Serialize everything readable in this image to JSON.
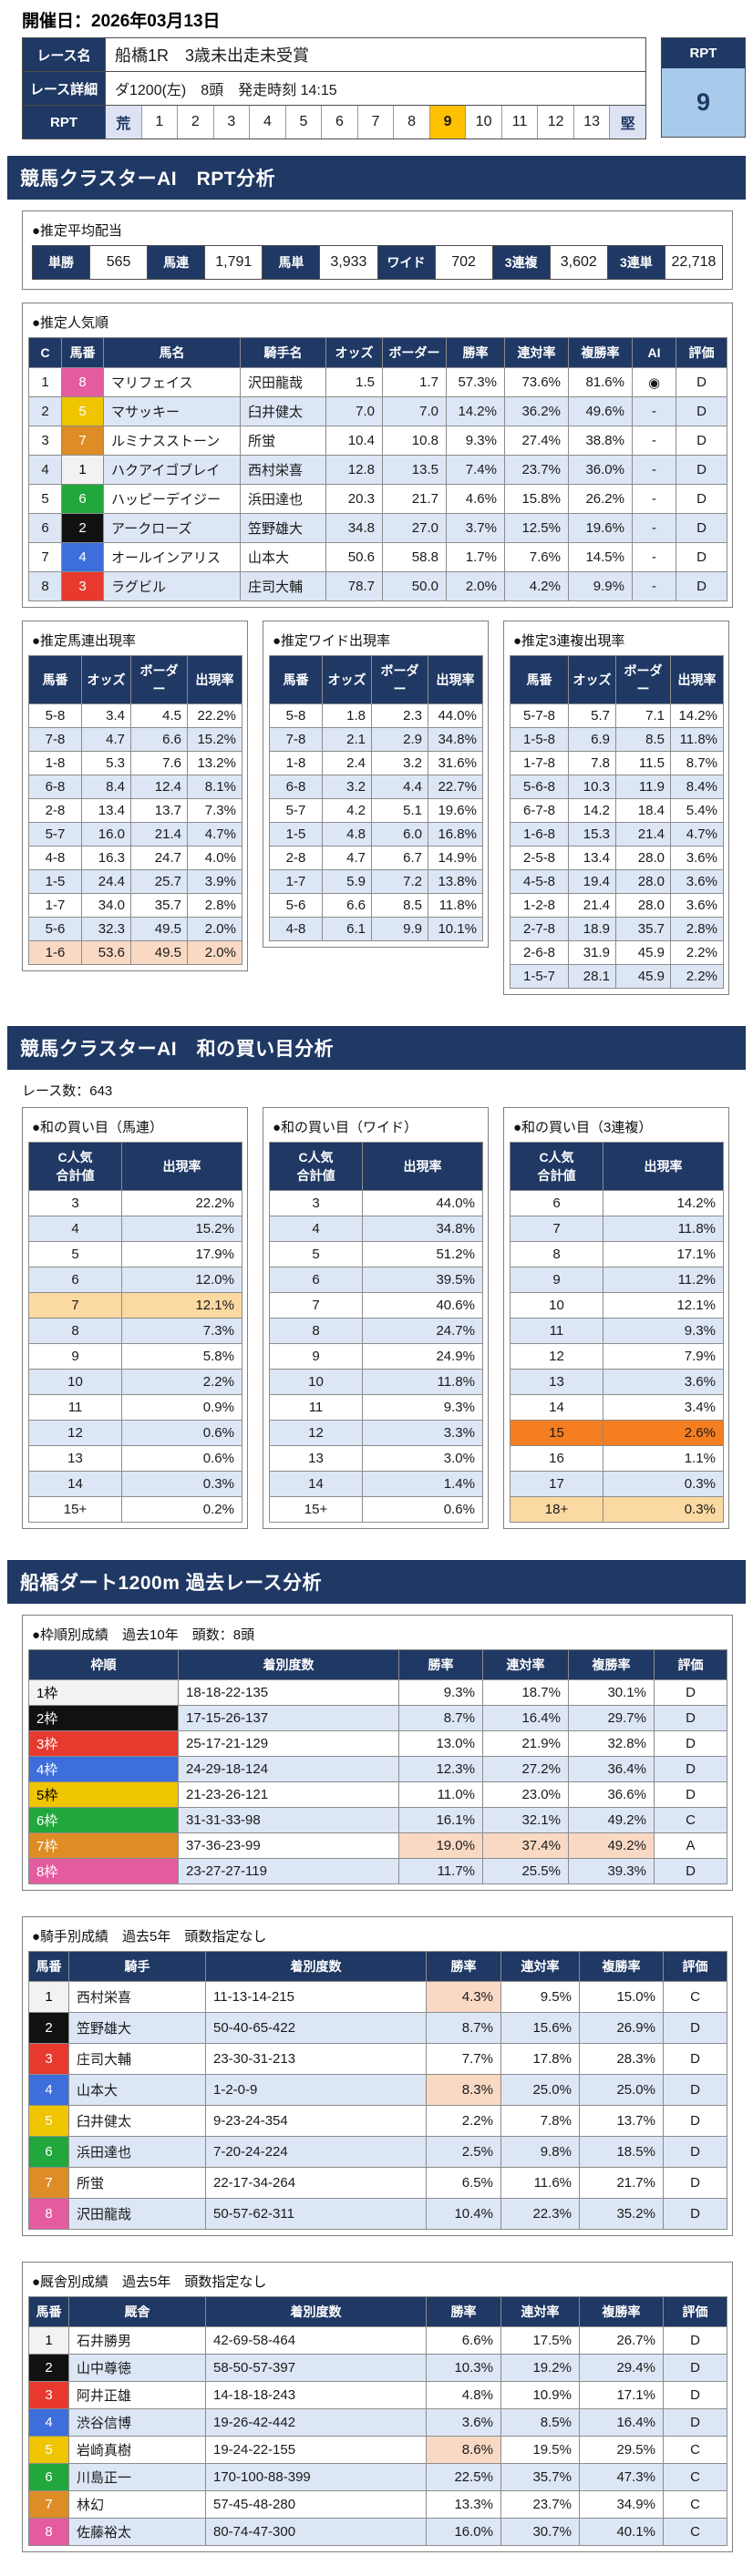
{
  "page": {
    "date_label": "開催日：2026年03月13日"
  },
  "colors": {
    "navy": "#1F3864",
    "row_alt": "#DCE6F5",
    "highlight_salmon": "#F9D9C4",
    "highlight_tan": "#FBD9A2",
    "highlight_orange": "#F57E20",
    "rpt_selected_bg": "#FFC000",
    "rpt_badge_bg": "#A8CBEC",
    "horse_numbers": {
      "1": "#F2F2F2",
      "2": "#111111",
      "3": "#E8392F",
      "4": "#3D6EDB",
      "5": "#EFC400",
      "6": "#21A73C",
      "7": "#DE8C26",
      "8": "#E45BA0"
    }
  },
  "race_info": {
    "name_label": "レース名",
    "name_value": "船橋1R　3歳未出走未受賞",
    "detail_label": "レース詳細",
    "detail_value": "ダ1200(左)　8頭　発走時刻 14:15",
    "rpt_label": "RPT",
    "rpt_scale": [
      "荒",
      "1",
      "2",
      "3",
      "4",
      "5",
      "6",
      "7",
      "8",
      "9",
      "10",
      "11",
      "12",
      "13",
      "堅"
    ],
    "rpt_selected": "9",
    "rpt_badge": {
      "label": "RPT",
      "value": "9"
    }
  },
  "section1": {
    "title": "競馬クラスターAI　RPT分析",
    "payout": {
      "title": "●推定平均配当",
      "items": [
        {
          "label": "単勝",
          "value": "565"
        },
        {
          "label": "馬連",
          "value": "1,791"
        },
        {
          "label": "馬単",
          "value": "3,933"
        },
        {
          "label": "ワイド",
          "value": "702"
        },
        {
          "label": "3連複",
          "value": "3,602"
        },
        {
          "label": "3連単",
          "value": "22,718"
        }
      ]
    },
    "popularity": {
      "title": "●推定人気順",
      "headers": [
        "C",
        "馬番",
        "馬名",
        "騎手名",
        "オッズ",
        "ボーダー",
        "勝率",
        "連対率",
        "複勝率",
        "AI",
        "評価"
      ],
      "rows": [
        [
          "1",
          {
            "t": "8",
            "cls": "n8"
          },
          "マリフェイス",
          "沢田龍哉",
          "1.5",
          "1.7",
          "57.3%",
          "73.6%",
          "81.6%",
          "◉",
          "D"
        ],
        [
          "2",
          {
            "t": "5",
            "cls": "n5"
          },
          "マサッキー",
          "臼井健太",
          "7.0",
          "7.0",
          "14.2%",
          "36.2%",
          "49.6%",
          "-",
          "D"
        ],
        [
          "3",
          {
            "t": "7",
            "cls": "n7"
          },
          "ルミナスストーン",
          "所蛍",
          "10.4",
          "10.8",
          "9.3%",
          "27.4%",
          "38.8%",
          "-",
          "D"
        ],
        [
          "4",
          {
            "t": "1",
            "cls": "n1"
          },
          "ハクアイゴブレイ",
          "西村栄喜",
          "12.8",
          "13.5",
          "7.4%",
          "23.7%",
          "36.0%",
          "-",
          "D"
        ],
        [
          "5",
          {
            "t": "6",
            "cls": "n6"
          },
          "ハッピーデイジー",
          "浜田達也",
          "20.3",
          "21.7",
          "4.6%",
          "15.8%",
          "26.2%",
          "-",
          "D"
        ],
        [
          "6",
          {
            "t": "2",
            "cls": "n2"
          },
          "アークローズ",
          "笠野雄大",
          "34.8",
          "27.0",
          "3.7%",
          "12.5%",
          "19.6%",
          "-",
          "D"
        ],
        [
          "7",
          {
            "t": "4",
            "cls": "n4"
          },
          "オールインアリス",
          "山本大",
          "50.6",
          "58.8",
          "1.7%",
          "7.6%",
          "14.5%",
          "-",
          "D"
        ],
        [
          "8",
          {
            "t": "3",
            "cls": "n3"
          },
          "ラグビル",
          "庄司大輔",
          "78.7",
          "50.0",
          "2.0%",
          "4.2%",
          "9.9%",
          "-",
          "D"
        ]
      ]
    },
    "umaren": {
      "title": "●推定馬連出現率",
      "headers": [
        "馬番",
        "オッズ",
        "ボーダー",
        "出現率"
      ],
      "rows": [
        [
          "5-8",
          "3.4",
          "4.5",
          "22.2%"
        ],
        [
          "7-8",
          "4.7",
          "6.6",
          "15.2%"
        ],
        [
          "1-8",
          "5.3",
          "7.6",
          "13.2%"
        ],
        [
          "6-8",
          "8.4",
          "12.4",
          "8.1%"
        ],
        [
          "2-8",
          "13.4",
          "13.7",
          "7.3%"
        ],
        [
          "5-7",
          "16.0",
          "21.4",
          "4.7%"
        ],
        [
          "4-8",
          "16.3",
          "24.7",
          "4.0%"
        ],
        [
          "1-5",
          "24.4",
          "25.7",
          "3.9%"
        ],
        [
          "1-7",
          "34.0",
          "35.7",
          "2.8%"
        ],
        [
          "5-6",
          "32.3",
          "49.5",
          "2.0%"
        ],
        {
          "cls": "row-salmon",
          "cells": [
            "1-6",
            "53.6",
            "49.5",
            "2.0%"
          ]
        }
      ]
    },
    "wide": {
      "title": "●推定ワイド出現率",
      "headers": [
        "馬番",
        "オッズ",
        "ボーダー",
        "出現率"
      ],
      "rows": [
        [
          "5-8",
          "1.8",
          "2.3",
          "44.0%"
        ],
        [
          "7-8",
          "2.1",
          "2.9",
          "34.8%"
        ],
        [
          "1-8",
          "2.4",
          "3.2",
          "31.6%"
        ],
        [
          "6-8",
          "3.2",
          "4.4",
          "22.7%"
        ],
        [
          "5-7",
          "4.2",
          "5.1",
          "19.6%"
        ],
        [
          "1-5",
          "4.8",
          "6.0",
          "16.8%"
        ],
        [
          "2-8",
          "4.7",
          "6.7",
          "14.9%"
        ],
        [
          "1-7",
          "5.9",
          "7.2",
          "13.8%"
        ],
        [
          "5-6",
          "6.6",
          "8.5",
          "11.8%"
        ],
        [
          "4-8",
          "6.1",
          "9.9",
          "10.1%"
        ]
      ]
    },
    "sanrenpuku": {
      "title": "●推定3連複出現率",
      "headers": [
        "馬番",
        "オッズ",
        "ボーダー",
        "出現率"
      ],
      "rows": [
        [
          "5-7-8",
          "5.7",
          "7.1",
          "14.2%"
        ],
        [
          "1-5-8",
          "6.9",
          "8.5",
          "11.8%"
        ],
        [
          "1-7-8",
          "7.8",
          "11.5",
          "8.7%"
        ],
        [
          "5-6-8",
          "10.3",
          "11.9",
          "8.4%"
        ],
        [
          "6-7-8",
          "14.2",
          "18.4",
          "5.4%"
        ],
        [
          "1-6-8",
          "15.3",
          "21.4",
          "4.7%"
        ],
        [
          "2-5-8",
          "13.4",
          "28.0",
          "3.6%"
        ],
        [
          "4-5-8",
          "19.4",
          "28.0",
          "3.6%"
        ],
        [
          "1-2-8",
          "21.4",
          "28.0",
          "3.6%"
        ],
        [
          "2-7-8",
          "18.9",
          "35.7",
          "2.8%"
        ],
        [
          "2-6-8",
          "31.9",
          "45.9",
          "2.2%"
        ],
        [
          "1-5-7",
          "28.1",
          "45.9",
          "2.2%"
        ]
      ]
    }
  },
  "section2": {
    "title": "競馬クラスターAI　和の買い目分析",
    "race_count": "レース数：643",
    "umaren": {
      "title": "●和の買い目（馬連）",
      "headers": [
        "C人気\n合計値",
        "出現率"
      ],
      "rows": [
        [
          "3",
          "22.2%"
        ],
        [
          "4",
          "15.2%"
        ],
        [
          "5",
          "17.9%"
        ],
        [
          "6",
          "12.0%"
        ],
        {
          "cls": "row-tan",
          "cells": [
            "7",
            "12.1%"
          ]
        },
        [
          "8",
          "7.3%"
        ],
        [
          "9",
          "5.8%"
        ],
        [
          "10",
          "2.2%"
        ],
        [
          "11",
          "0.9%"
        ],
        [
          "12",
          "0.6%"
        ],
        [
          "13",
          "0.6%"
        ],
        [
          "14",
          "0.3%"
        ],
        [
          "15+",
          "0.2%"
        ]
      ]
    },
    "wide": {
      "title": "●和の買い目（ワイド）",
      "headers": [
        "C人気\n合計値",
        "出現率"
      ],
      "rows": [
        [
          "3",
          "44.0%"
        ],
        [
          "4",
          "34.8%"
        ],
        [
          "5",
          "51.2%"
        ],
        [
          "6",
          "39.5%"
        ],
        [
          "7",
          "40.6%"
        ],
        [
          "8",
          "24.7%"
        ],
        [
          "9",
          "24.9%"
        ],
        [
          "10",
          "11.8%"
        ],
        [
          "11",
          "9.3%"
        ],
        [
          "12",
          "3.3%"
        ],
        [
          "13",
          "3.0%"
        ],
        [
          "14",
          "1.4%"
        ],
        [
          "15+",
          "0.6%"
        ]
      ]
    },
    "sanrenpuku": {
      "title": "●和の買い目（3連複）",
      "headers": [
        "C人気\n合計値",
        "出現率"
      ],
      "rows": [
        [
          "6",
          "14.2%"
        ],
        [
          "7",
          "11.8%"
        ],
        [
          "8",
          "17.1%"
        ],
        [
          "9",
          "11.2%"
        ],
        [
          "10",
          "12.1%"
        ],
        [
          "11",
          "9.3%"
        ],
        [
          "12",
          "7.9%"
        ],
        [
          "13",
          "3.6%"
        ],
        [
          "14",
          "3.4%"
        ],
        {
          "cls": "row-orange",
          "cells": [
            "15",
            "2.6%"
          ]
        },
        [
          "16",
          "1.1%"
        ],
        [
          "17",
          "0.3%"
        ],
        {
          "cls": "row-tan",
          "cells": [
            "18+",
            "0.3%"
          ]
        }
      ]
    }
  },
  "section3": {
    "title": "船橋ダート1200m 過去レース分析",
    "waku": {
      "title": "●枠順別成績　過去10年　頭数：8頭",
      "headers": [
        "枠順",
        "着別度数",
        "勝率",
        "連対率",
        "複勝率",
        "評価"
      ],
      "rows": [
        [
          {
            "t": "1枠",
            "cls": "w1"
          },
          "18-18-22-135",
          "9.3%",
          "18.7%",
          "30.1%",
          "D"
        ],
        [
          {
            "t": "2枠",
            "cls": "w2"
          },
          "17-15-26-137",
          "8.7%",
          "16.4%",
          "29.7%",
          "D"
        ],
        [
          {
            "t": "3枠",
            "cls": "w3"
          },
          "25-17-21-129",
          "13.0%",
          "21.9%",
          "32.8%",
          "D"
        ],
        [
          {
            "t": "4枠",
            "cls": "w4"
          },
          "24-29-18-124",
          "12.3%",
          "27.2%",
          "36.4%",
          "D"
        ],
        [
          {
            "t": "5枠",
            "cls": "w5"
          },
          "21-23-26-121",
          "11.0%",
          "23.0%",
          "36.6%",
          "D"
        ],
        [
          {
            "t": "6枠",
            "cls": "w6"
          },
          "31-31-33-98",
          "16.1%",
          "32.1%",
          "49.2%",
          "C"
        ],
        [
          {
            "t": "7枠",
            "cls": "w7"
          },
          "37-36-23-99",
          {
            "t": "19.0%",
            "cls": "hl"
          },
          {
            "t": "37.4%",
            "cls": "hl"
          },
          {
            "t": "49.2%",
            "cls": "hl"
          },
          "A"
        ],
        [
          {
            "t": "8枠",
            "cls": "w8"
          },
          "23-27-27-119",
          "11.7%",
          "25.5%",
          "39.3%",
          "D"
        ]
      ]
    },
    "jockey": {
      "title": "●騎手別成績　過去5年　頭数指定なし",
      "headers": [
        "馬番",
        "騎手",
        "着別度数",
        "勝率",
        "連対率",
        "複勝率",
        "評価"
      ],
      "rows": [
        [
          {
            "t": "1",
            "cls": "n1"
          },
          "西村栄喜",
          "11-13-14-215",
          {
            "t": "4.3%",
            "cls": "hl"
          },
          "9.5%",
          "15.0%",
          "C"
        ],
        [
          {
            "t": "2",
            "cls": "n2"
          },
          "笠野雄大",
          "50-40-65-422",
          "8.7%",
          "15.6%",
          "26.9%",
          "D"
        ],
        [
          {
            "t": "3",
            "cls": "n3"
          },
          "庄司大輔",
          "23-30-31-213",
          "7.7%",
          "17.8%",
          "28.3%",
          "D"
        ],
        [
          {
            "t": "4",
            "cls": "n4"
          },
          "山本大",
          "1-2-0-9",
          {
            "t": "8.3%",
            "cls": "hl"
          },
          "25.0%",
          "25.0%",
          "D"
        ],
        [
          {
            "t": "5",
            "cls": "n5"
          },
          "臼井健太",
          "9-23-24-354",
          "2.2%",
          "7.8%",
          "13.7%",
          "D"
        ],
        [
          {
            "t": "6",
            "cls": "n6"
          },
          "浜田達也",
          "7-20-24-224",
          "2.5%",
          "9.8%",
          "18.5%",
          "D"
        ],
        [
          {
            "t": "7",
            "cls": "n7"
          },
          "所蛍",
          "22-17-34-264",
          "6.5%",
          "11.6%",
          "21.7%",
          "D"
        ],
        [
          {
            "t": "8",
            "cls": "n8"
          },
          "沢田龍哉",
          "50-57-62-311",
          "10.4%",
          "22.3%",
          "35.2%",
          "D"
        ]
      ]
    },
    "stable": {
      "title": "●厩舎別成績　過去5年　頭数指定なし",
      "headers": [
        "馬番",
        "厩舎",
        "着別度数",
        "勝率",
        "連対率",
        "複勝率",
        "評価"
      ],
      "rows": [
        [
          {
            "t": "1",
            "cls": "n1"
          },
          "石井勝男",
          "42-69-58-464",
          "6.6%",
          "17.5%",
          "26.7%",
          "D"
        ],
        [
          {
            "t": "2",
            "cls": "n2"
          },
          "山中尊徳",
          "58-50-57-397",
          "10.3%",
          "19.2%",
          "29.4%",
          "D"
        ],
        [
          {
            "t": "3",
            "cls": "n3"
          },
          "阿井正雄",
          "14-18-18-243",
          "4.8%",
          "10.9%",
          "17.1%",
          "D"
        ],
        [
          {
            "t": "4",
            "cls": "n4"
          },
          "渋谷信博",
          "19-26-42-442",
          "3.6%",
          "8.5%",
          "16.4%",
          "D"
        ],
        [
          {
            "t": "5",
            "cls": "n5"
          },
          "岩崎真樹",
          "19-24-22-155",
          {
            "t": "8.6%",
            "cls": "hl"
          },
          "19.5%",
          "29.5%",
          "C"
        ],
        [
          {
            "t": "6",
            "cls": "n6"
          },
          "川島正一",
          "170-100-88-399",
          "22.5%",
          "35.7%",
          "47.3%",
          "C"
        ],
        [
          {
            "t": "7",
            "cls": "n7"
          },
          "林幻",
          "57-45-48-280",
          "13.3%",
          "23.7%",
          "34.9%",
          "C"
        ],
        [
          {
            "t": "8",
            "cls": "n8"
          },
          "佐藤裕太",
          "80-74-47-300",
          "16.0%",
          "30.7%",
          "40.1%",
          "C"
        ]
      ]
    }
  }
}
